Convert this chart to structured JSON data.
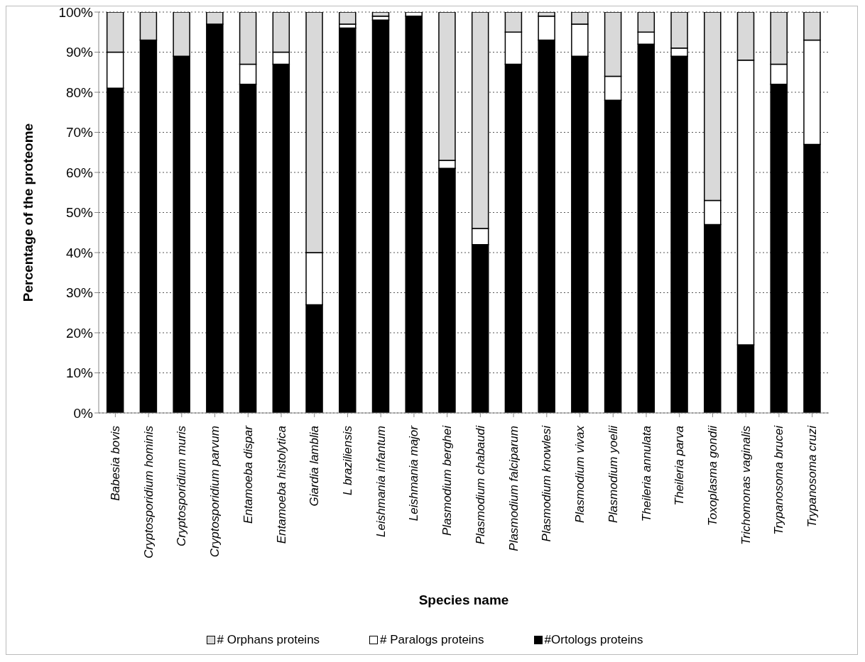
{
  "chart_data": {
    "type": "bar",
    "stacked": true,
    "xlabel": "Species name",
    "ylabel": "Percentage of the proteome",
    "categories": [
      "Babesia bovis",
      "Cryptosporidium hominis",
      "Cryptosporidium muris",
      "Cryptosporidium parvum",
      "Entamoeba dispar",
      "Entamoeba histolytica",
      "Giardia lamblia",
      "L braziliensis",
      "Leishmania infantum",
      "Leishmania major",
      "Plasmodium berghei",
      "Plasmodium chabaudi",
      "Plasmodium falciparum",
      "Plasmodium knowlesi",
      "Plasmodium vivax",
      "Plasmodium yoelii",
      "Theileria annulata",
      "Theileria parva",
      "Toxoplasma gondii",
      "Trichomonas vaginalis",
      "Trypanosoma brucei",
      "Trypanosoma cruzi"
    ],
    "series": [
      {
        "name": "#Ortologs proteins",
        "color": "#000000",
        "values": [
          81,
          93,
          89,
          97,
          82,
          87,
          27,
          96,
          98,
          99,
          61,
          42,
          87,
          93,
          89,
          78,
          92,
          89,
          47,
          17,
          82,
          67
        ]
      },
      {
        "name": "# Paralogs proteins",
        "color": "#ffffff",
        "values": [
          9,
          0,
          0,
          0,
          5,
          3,
          13,
          1,
          1,
          1,
          2,
          4,
          8,
          6,
          8,
          6,
          3,
          2,
          6,
          71,
          5,
          26
        ]
      },
      {
        "name": "# Orphans proteins",
        "color": "#d9d9d9",
        "values": [
          10,
          7,
          11,
          3,
          13,
          10,
          60,
          3,
          1,
          0,
          37,
          54,
          5,
          1,
          3,
          16,
          5,
          9,
          47,
          12,
          13,
          7
        ]
      }
    ],
    "ylim": [
      0,
      100
    ],
    "yticks": [
      {
        "value": 0,
        "label": "0%"
      },
      {
        "value": 10,
        "label": "10%"
      },
      {
        "value": 20,
        "label": "20%"
      },
      {
        "value": 30,
        "label": "30%"
      },
      {
        "value": 40,
        "label": "40%"
      },
      {
        "value": 50,
        "label": "50%"
      },
      {
        "value": 60,
        "label": "60%"
      },
      {
        "value": 70,
        "label": "70%"
      },
      {
        "value": 80,
        "label": "80%"
      },
      {
        "value": 90,
        "label": "90%"
      },
      {
        "value": 100,
        "label": "100%"
      }
    ],
    "grid": "y",
    "legend": "bottom"
  }
}
